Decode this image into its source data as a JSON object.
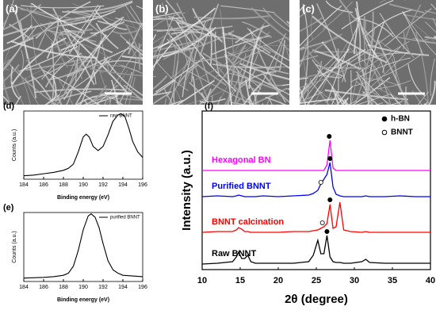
{
  "images": [
    {
      "label": "(a)"
    },
    {
      "label": "(b)"
    },
    {
      "label": "(c)"
    }
  ],
  "chart_data": [
    {
      "type": "line",
      "label": "(d)",
      "xlabel": "Binding energy (eV)",
      "ylabel": "Counts (a.u.)",
      "xlim": [
        184,
        196
      ],
      "xticks": [
        184,
        186,
        188,
        190,
        192,
        194,
        196
      ],
      "ylim": [
        0,
        100
      ],
      "legend": "upper right",
      "x": [
        184,
        185,
        186,
        187,
        188,
        188.5,
        189,
        189.5,
        190,
        190.3,
        190.6,
        191,
        191.5,
        192,
        192.5,
        193,
        193.5,
        193.8,
        194.2,
        194.6,
        195,
        195.5,
        196
      ],
      "series": [
        {
          "name": "raw BNNT",
          "color": "#000000",
          "values": [
            5,
            6,
            8,
            10,
            13,
            16,
            22,
            40,
            62,
            66,
            62,
            48,
            42,
            48,
            65,
            85,
            94,
            96,
            92,
            75,
            55,
            40,
            32
          ]
        }
      ]
    },
    {
      "type": "line",
      "label": "(e)",
      "xlabel": "Binding energy (eV)",
      "ylabel": "Counts (a.u.)",
      "xlim": [
        184,
        196
      ],
      "xticks": [
        184,
        186,
        188,
        190,
        192,
        194,
        196
      ],
      "ylim": [
        0,
        100
      ],
      "legend": "upper right",
      "x": [
        184,
        186,
        187,
        188,
        188.5,
        189,
        189.5,
        190,
        190.5,
        190.8,
        191.2,
        191.6,
        192,
        192.5,
        193,
        193.5,
        194,
        195,
        196
      ],
      "series": [
        {
          "name": "purified BNNT",
          "color": "#000000",
          "values": [
            5,
            6,
            7,
            9,
            12,
            22,
            45,
            75,
            95,
            98,
            93,
            78,
            55,
            30,
            17,
            12,
            9,
            8,
            7
          ]
        }
      ]
    },
    {
      "type": "line",
      "label": "(f)",
      "xlabel": "2θ (degree)",
      "ylabel": "Intensity (a.u.)",
      "xlim": [
        10,
        40
      ],
      "xticks": [
        10,
        15,
        20,
        25,
        30,
        35,
        40
      ],
      "ylim": [
        0,
        100
      ],
      "legend": "upper right",
      "direct_labels": true,
      "x": [
        10,
        12,
        14,
        14.5,
        14.8,
        15.2,
        15.6,
        16,
        16.4,
        17,
        18,
        20,
        22,
        24,
        24.6,
        25.2,
        25.6,
        26,
        26.4,
        26.8,
        27.2,
        27.6,
        28.1,
        28.6,
        29.5,
        31,
        31.5,
        32,
        34,
        36,
        38,
        40
      ],
      "series": [
        {
          "name": "Hexagonal BN",
          "color": "#ff00ff",
          "values": [
            62.5,
            62.5,
            62.5,
            62.5,
            62.5,
            62.5,
            62.5,
            62.5,
            62.5,
            62.5,
            62.5,
            62.5,
            62.5,
            62.5,
            62.5,
            62.5,
            62.5,
            62.5,
            66,
            81.5,
            64,
            62.5,
            62.5,
            62.5,
            62.5,
            62.5,
            62.5,
            62.5,
            62.5,
            62.5,
            62.5,
            62.5
          ]
        },
        {
          "name": "Purified BNNT",
          "color": "#0000ff",
          "values": [
            46,
            46.5,
            46,
            46.5,
            47,
            46.5,
            46,
            46,
            46,
            46,
            46.5,
            46,
            46.5,
            47,
            48,
            50,
            54,
            57,
            60,
            67.5,
            52,
            47.5,
            46.5,
            46,
            46,
            46,
            46.5,
            46,
            46,
            46.5,
            46,
            46
          ]
        },
        {
          "name": "BNNT calcination",
          "color": "#ff0000",
          "values": [
            23.5,
            24,
            24,
            25,
            26.5,
            25.5,
            24,
            24,
            23.5,
            23.5,
            23.5,
            23.5,
            24,
            24,
            24.5,
            25,
            26,
            27,
            29,
            41,
            26,
            27,
            42.5,
            25,
            24,
            23.5,
            24,
            23.5,
            23.5,
            23.5,
            23.5,
            23.5
          ]
        },
        {
          "name": "Raw BNNT",
          "color": "#000000",
          "values": [
            3.5,
            4,
            5,
            8,
            11,
            7,
            7,
            9,
            5,
            4,
            4,
            4,
            4,
            5,
            9,
            18.5,
            10,
            10,
            21.5,
            8,
            5,
            4.5,
            4.5,
            4,
            4,
            5,
            6.5,
            4.5,
            4,
            4,
            4,
            4
          ]
        },
        {
          "name": "h-BN",
          "type": "scatter",
          "marker": "filled",
          "color": "#000000",
          "x": [
            26.7,
            26.8,
            26.8,
            26.4
          ],
          "values": [
            84,
            70,
            44,
            24
          ]
        },
        {
          "name": "BNNT",
          "type": "scatter",
          "marker": "open",
          "color": "#000000",
          "x": [
            25.6,
            25.8
          ],
          "values": [
            55,
            29.5
          ]
        }
      ]
    }
  ]
}
